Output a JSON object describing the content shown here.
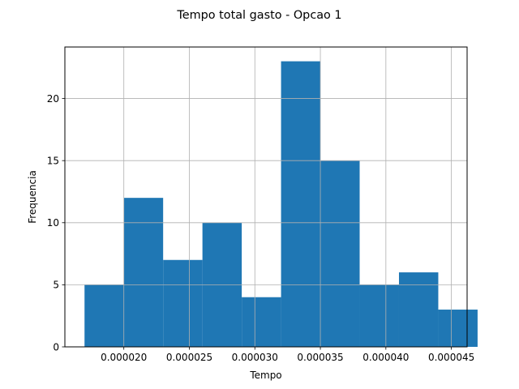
{
  "chart_data": {
    "type": "bar",
    "title": "Tempo total gasto - Opcao 1",
    "xlabel": "Tempo",
    "ylabel": "Frequencia",
    "xlim": [
      1.55e-05,
      4.62e-05
    ],
    "ylim": [
      0,
      24.15
    ],
    "grid": true,
    "bar_color": "#1f77b4",
    "bins": [
      {
        "start": 1.7e-05,
        "end": 2e-05,
        "value": 5
      },
      {
        "start": 2e-05,
        "end": 2.3e-05,
        "value": 12
      },
      {
        "start": 2.3e-05,
        "end": 2.6e-05,
        "value": 7
      },
      {
        "start": 2.6e-05,
        "end": 2.9e-05,
        "value": 10
      },
      {
        "start": 2.9e-05,
        "end": 3.2e-05,
        "value": 4
      },
      {
        "start": 3.2e-05,
        "end": 3.5e-05,
        "value": 23
      },
      {
        "start": 3.5e-05,
        "end": 3.8e-05,
        "value": 15
      },
      {
        "start": 3.8e-05,
        "end": 4.1e-05,
        "value": 5
      },
      {
        "start": 4.1e-05,
        "end": 4.4e-05,
        "value": 6
      },
      {
        "start": 4.4e-05,
        "end": 4.7e-05,
        "value": 3
      }
    ],
    "x_ticks": [
      {
        "value": 2e-05,
        "label": "0.000020"
      },
      {
        "value": 2.5e-05,
        "label": "0.000025"
      },
      {
        "value": 3e-05,
        "label": "0.000030"
      },
      {
        "value": 3.5e-05,
        "label": "0.000035"
      },
      {
        "value": 4e-05,
        "label": "0.000040"
      },
      {
        "value": 4.5e-05,
        "label": "0.000045"
      }
    ],
    "y_ticks": [
      {
        "value": 0,
        "label": "0"
      },
      {
        "value": 5,
        "label": "5"
      },
      {
        "value": 10,
        "label": "10"
      },
      {
        "value": 15,
        "label": "15"
      },
      {
        "value": 20,
        "label": "20"
      }
    ]
  }
}
